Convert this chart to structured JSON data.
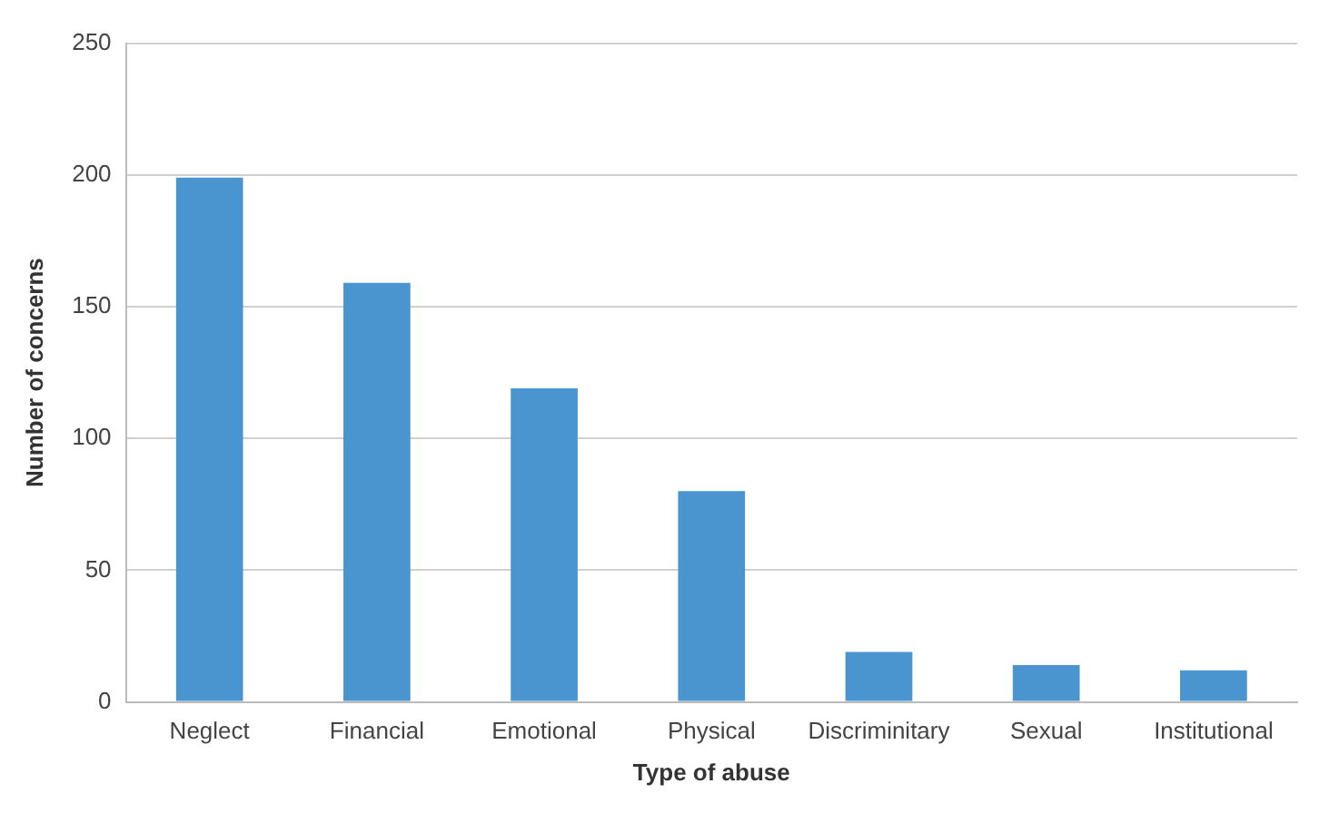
{
  "chart_data": {
    "type": "bar",
    "xlabel": "Type of abuse",
    "ylabel": "Number of concerns",
    "categories": [
      "Neglect",
      "Financial",
      "Emotional",
      "Physical",
      "Discriminitary",
      "Sexual",
      "Institutional"
    ],
    "values": [
      199,
      159,
      119,
      80,
      19,
      14,
      12
    ],
    "color": "#4a94d0",
    "ylim": [
      0,
      250
    ],
    "yticks": [
      0,
      50,
      100,
      150,
      200,
      250
    ],
    "grid": "y",
    "legend": false
  }
}
